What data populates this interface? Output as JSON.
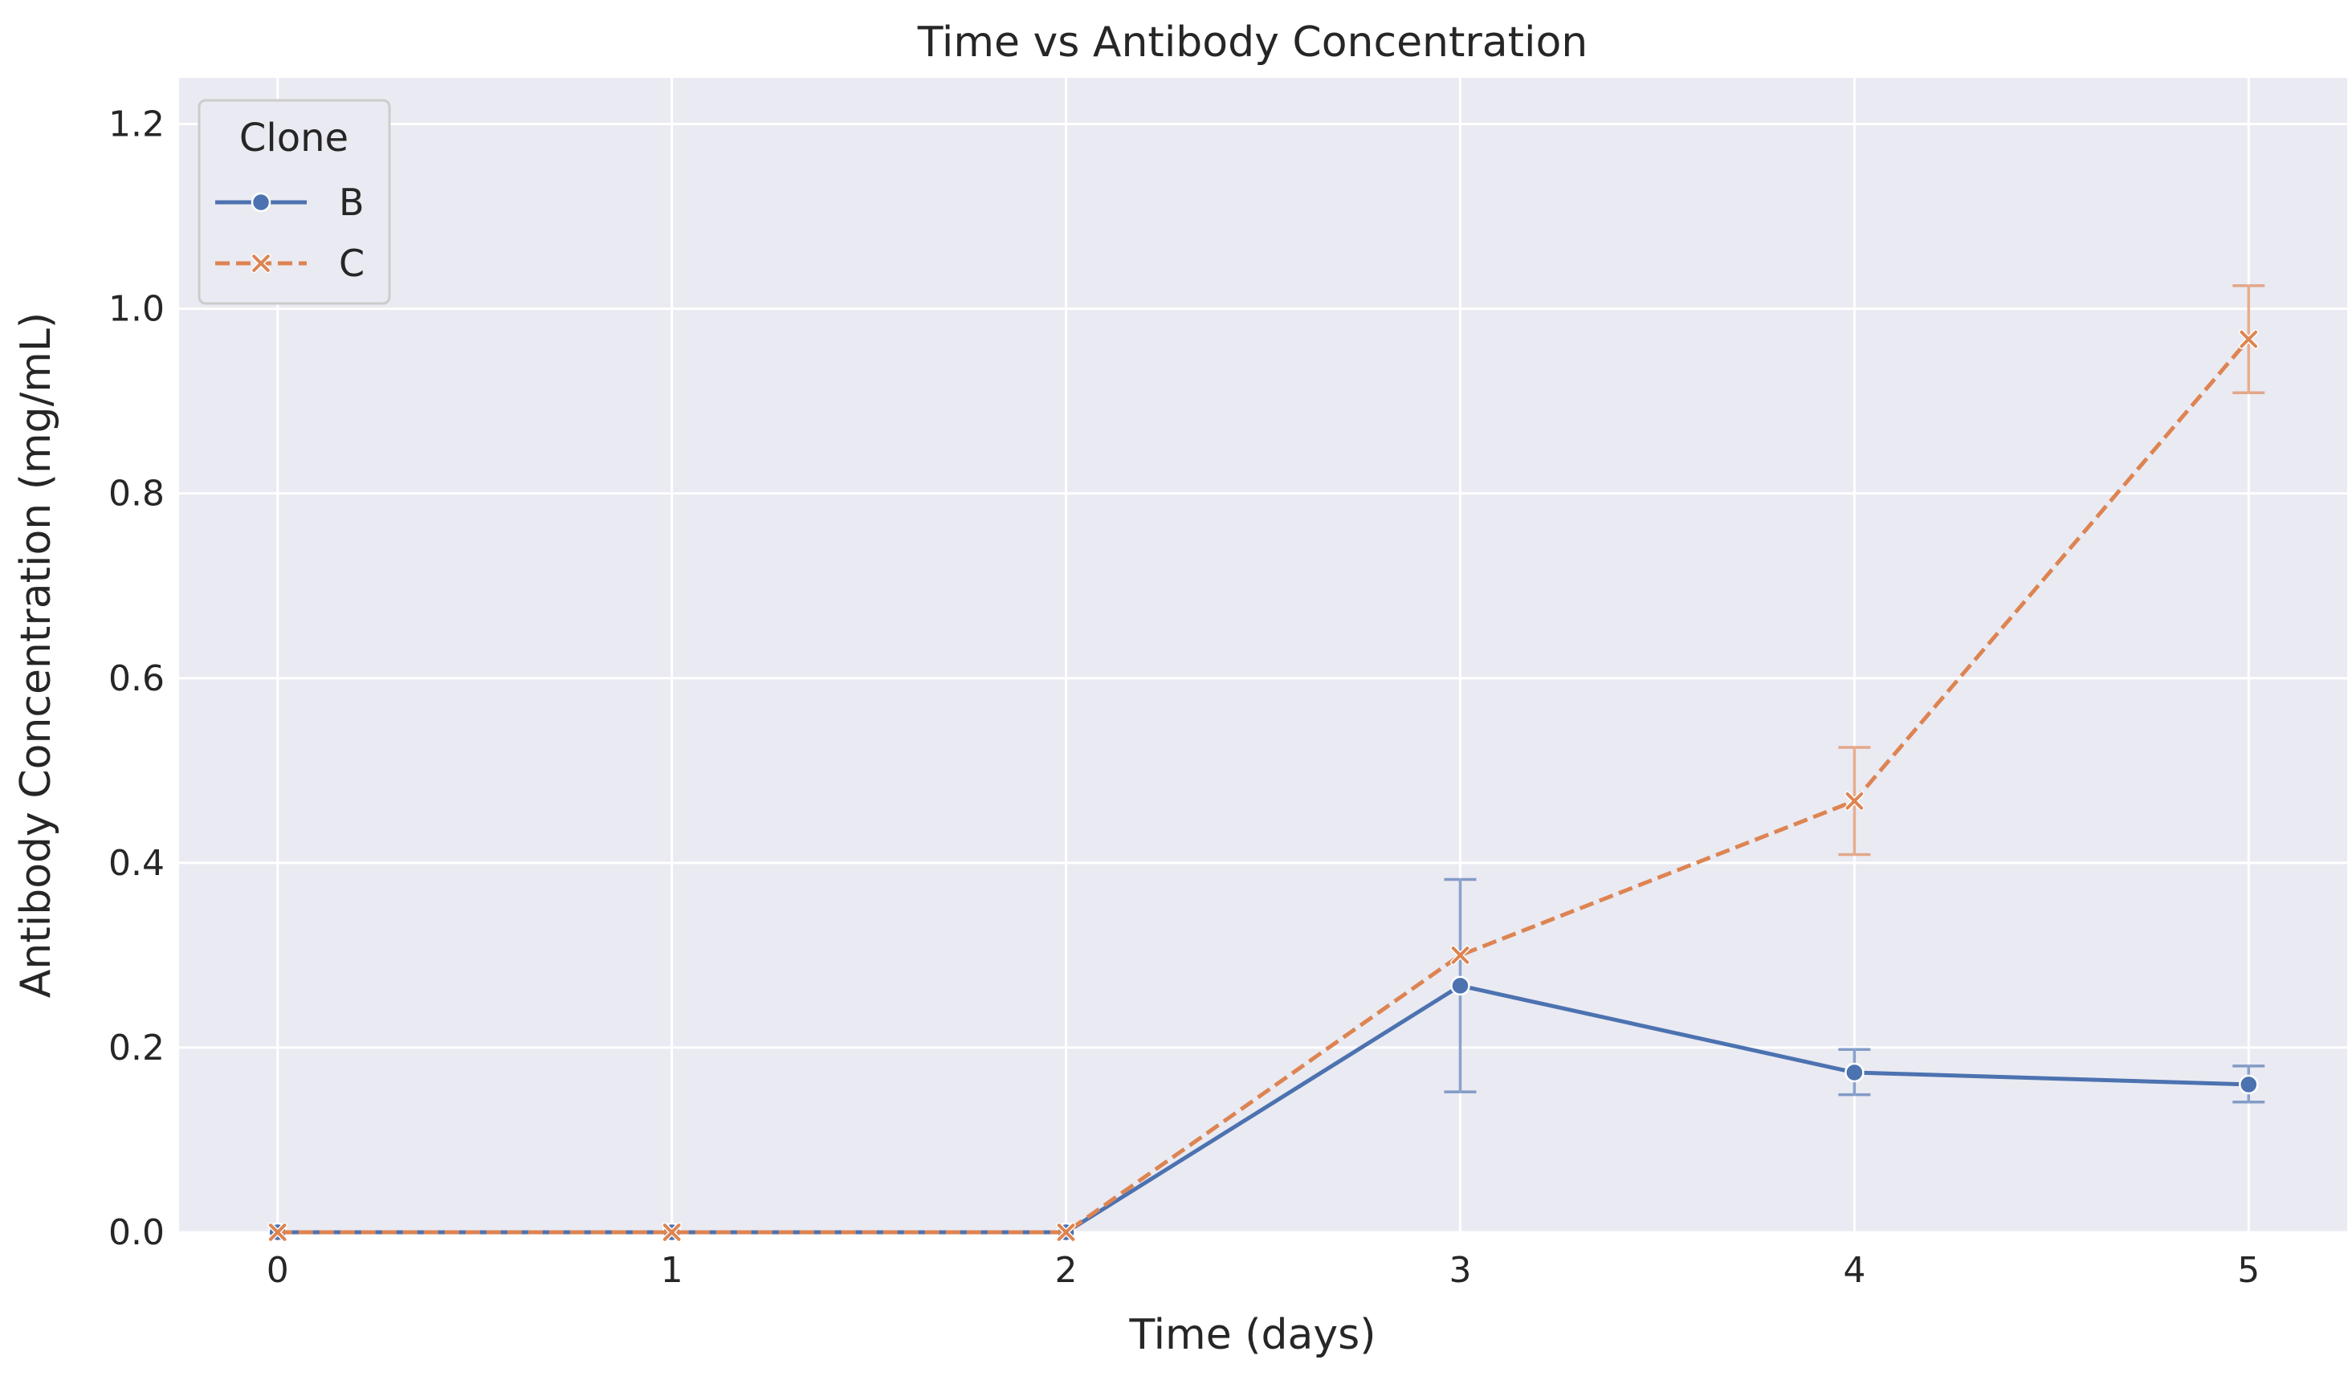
{
  "chart_data": {
    "type": "line",
    "title": "Time vs Antibody Concentration",
    "xlabel": "Time (days)",
    "ylabel": "Antibody Concentration (mg/mL)",
    "x": [
      0,
      1,
      2,
      3,
      4,
      5
    ],
    "xticks": [
      "0",
      "1",
      "2",
      "3",
      "4",
      "5"
    ],
    "xlim": [
      -0.25,
      5.25
    ],
    "ylim": [
      0,
      1.25
    ],
    "yticks": [
      "0.0",
      "0.2",
      "0.4",
      "0.6",
      "0.8",
      "1.0",
      "1.2"
    ],
    "grid": true,
    "legend": {
      "title": "Clone",
      "placement": "top-left"
    },
    "series": [
      {
        "name": "B",
        "color": "#4c72b0",
        "marker": "circle",
        "linestyle": "solid",
        "values": [
          0,
          0,
          0,
          0.267,
          0.173,
          0.16
        ],
        "err_low": [
          0,
          0,
          0,
          0.152,
          0.149,
          0.141
        ],
        "err_high": [
          0,
          0,
          0,
          0.382,
          0.198,
          0.18
        ]
      },
      {
        "name": "C",
        "color": "#dd8452",
        "marker": "x",
        "linestyle": "dashed",
        "values": [
          0,
          0,
          0,
          0.3,
          0.467,
          0.967
        ],
        "err_low": [
          0,
          0,
          0,
          0.3,
          0.409,
          0.909
        ],
        "err_high": [
          0,
          0,
          0,
          0.3,
          0.525,
          1.025
        ]
      }
    ]
  }
}
